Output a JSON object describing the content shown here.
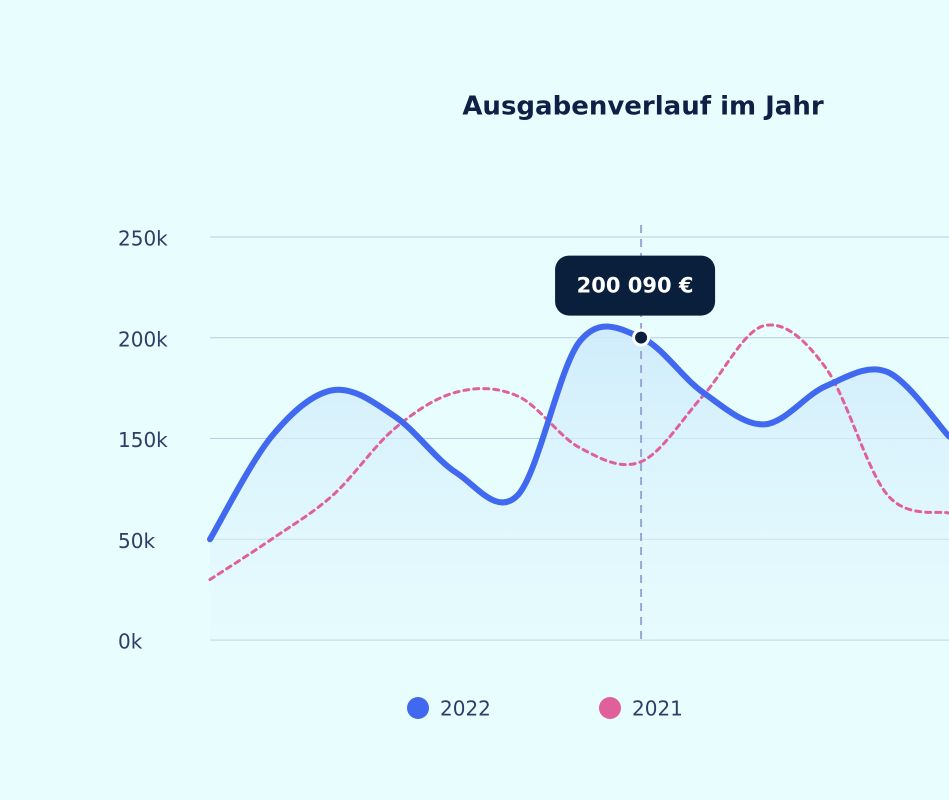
{
  "chart_data": {
    "type": "line",
    "title": "Ausgabenverlauf im Jahr",
    "categories": [
      null,
      null,
      null,
      null,
      null,
      null,
      null,
      null,
      null,
      null,
      null,
      null,
      null
    ],
    "series": [
      {
        "name": "2022",
        "color": "#4169f0",
        "style": "solid",
        "area": true,
        "values": [
          50000,
          151000,
          174000,
          161000,
          116000,
          94000,
          198000,
          200090,
          173000,
          157000,
          176000,
          183000,
          151000
        ],
        "value_labels": [
          null,
          null,
          null,
          null,
          null,
          null,
          null,
          "200 090 €",
          null,
          null,
          null,
          null,
          null
        ]
      },
      {
        "name": "2021",
        "color": "#e0609c",
        "style": "dotted",
        "values": [
          30000,
          50000,
          94000,
          155000,
          173000,
          171000,
          141000,
          127000,
          171000,
          206000,
          185000,
          94000,
          76000
        ]
      }
    ],
    "highlight_index": 7,
    "ylim": [
      0,
      250000
    ],
    "yticks": [
      {
        "value": 0,
        "label": "0k"
      },
      {
        "value": 50000,
        "label": "50k"
      },
      {
        "value": 150000,
        "label": "150k"
      },
      {
        "value": 200000,
        "label": "200k"
      },
      {
        "value": 250000,
        "label": "250k"
      }
    ],
    "grid": true,
    "legend": "bottom"
  }
}
